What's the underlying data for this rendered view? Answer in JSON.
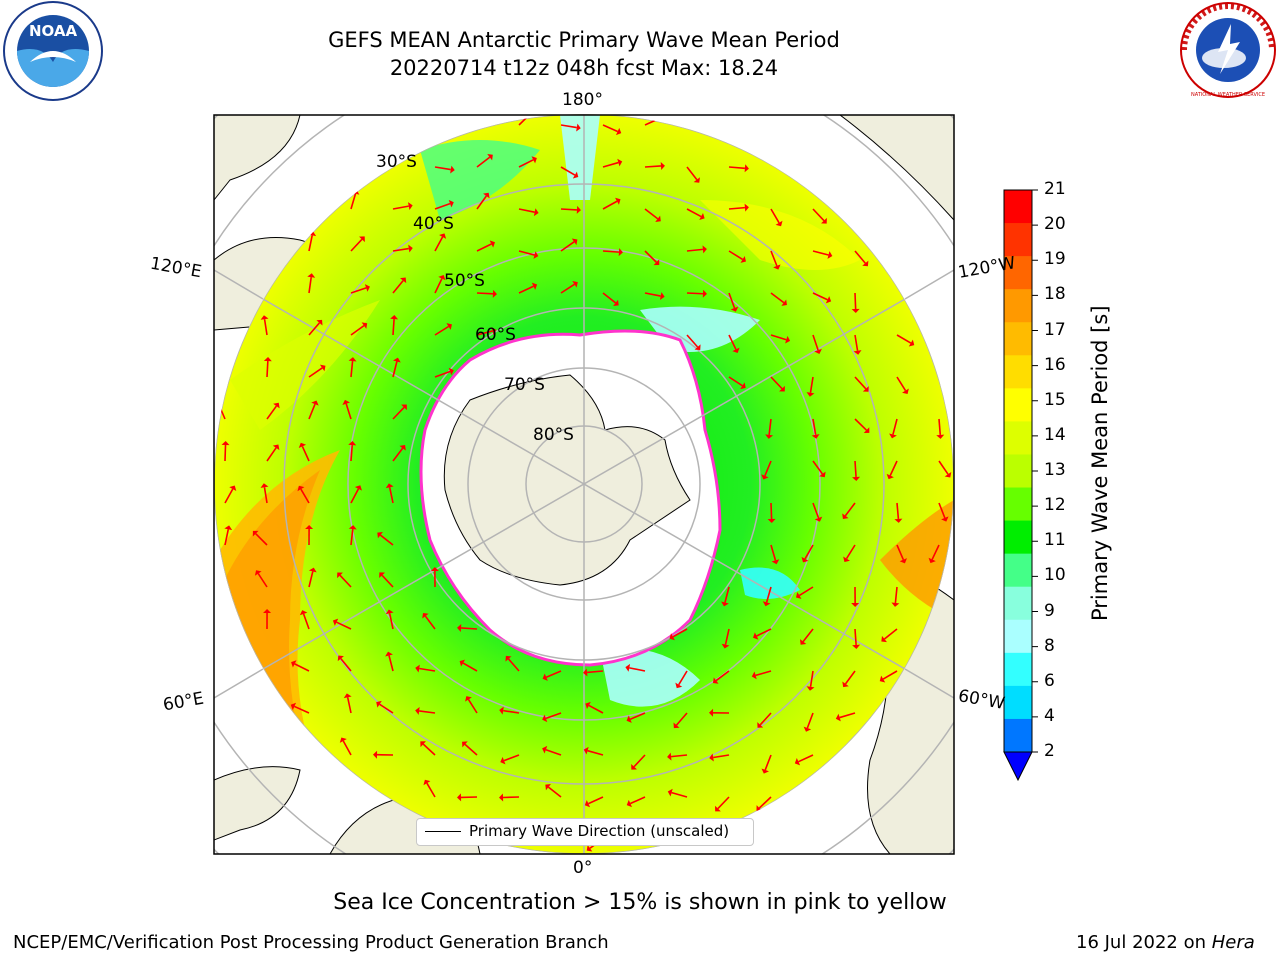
{
  "header": {
    "title_line1": "GEFS MEAN Antarctic Primary Wave Mean Period",
    "title_line2": "20220714 t12z 048h fcst   Max: 18.24"
  },
  "map": {
    "projection": "south-polar-stereographic",
    "lon_labels": [
      "180°",
      "120°E",
      "120°W",
      "60°E",
      "60°W",
      "0°"
    ],
    "lat_labels": [
      "30°S",
      "40°S",
      "50°S",
      "60°S",
      "70°S",
      "80°S"
    ],
    "legend_label": "Primary Wave Direction (unscaled)",
    "colors": {
      "land": "#efeedd",
      "ice": "#ffffff",
      "ice_edge": "#ff33cc",
      "arrows": "#ff0000",
      "grid": "#b4b4b4"
    }
  },
  "colorbar": {
    "label": "Primary Wave Mean Period [s]",
    "ticks": [
      "21",
      "20",
      "19",
      "18",
      "17",
      "16",
      "15",
      "14",
      "13",
      "12",
      "11",
      "10",
      "9",
      "8",
      "6",
      "4",
      "2"
    ],
    "colors": [
      "#ff0000",
      "#ff3300",
      "#ff6600",
      "#ff9900",
      "#ffbb00",
      "#ffdd00",
      "#ffff00",
      "#ddff00",
      "#bbff00",
      "#66ff00",
      "#00ee00",
      "#44ff88",
      "#88ffdd",
      "#aaffff",
      "#33ffff",
      "#00ddff",
      "#0077ff"
    ],
    "extend_color": "#0000ff"
  },
  "footer": {
    "sea_ice_note": "Sea Ice Concentration > 15% is shown in pink to yellow",
    "left": "NCEP/EMC/Verification Post Processing Product Generation Branch",
    "right_date": "16 Jul 2022 on ",
    "right_host": "Hera"
  },
  "logos": {
    "noaa": "NOAA",
    "nws": "NATIONAL WEATHER SERVICE"
  }
}
